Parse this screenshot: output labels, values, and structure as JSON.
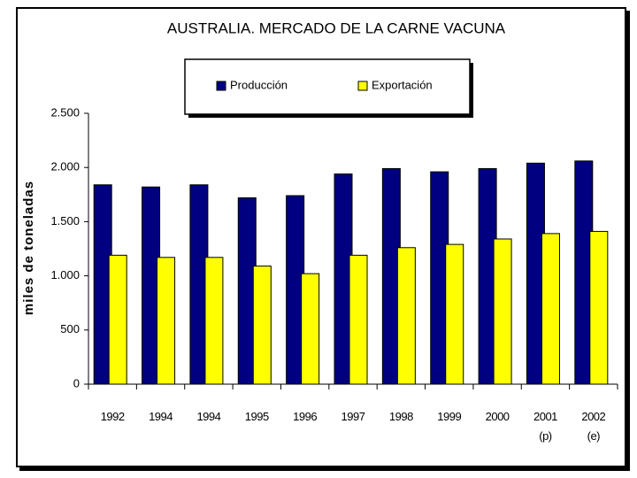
{
  "chart_data": {
    "type": "bar",
    "title": "AUSTRALIA. MERCADO DE LA CARNE VACUNA",
    "y_label": "miles de toneladas",
    "categories": [
      "1992",
      "1994",
      "1994",
      "1995",
      "1996",
      "1997",
      "1998",
      "1999",
      "2000",
      "2001\n(p)",
      "2002\n(e)"
    ],
    "series": [
      {
        "name": "Producción",
        "color": "#000080",
        "values": [
          1840,
          1820,
          1840,
          1720,
          1740,
          1940,
          1990,
          1960,
          1990,
          2040,
          2060
        ]
      },
      {
        "name": "Exportación",
        "color": "#ffff00",
        "values": [
          1190,
          1170,
          1170,
          1090,
          1020,
          1190,
          1260,
          1290,
          1340,
          1390,
          1410
        ]
      }
    ],
    "ylim": [
      0,
      2500
    ],
    "yticks": [
      0,
      500,
      {
        "value": 1000,
        "label": "1.000"
      },
      {
        "value": 1500,
        "label": "1.500"
      },
      {
        "value": 2000,
        "label": "2.000"
      },
      {
        "value": 2500,
        "label": "2.500"
      }
    ],
    "legend": "top",
    "grid": false
  }
}
